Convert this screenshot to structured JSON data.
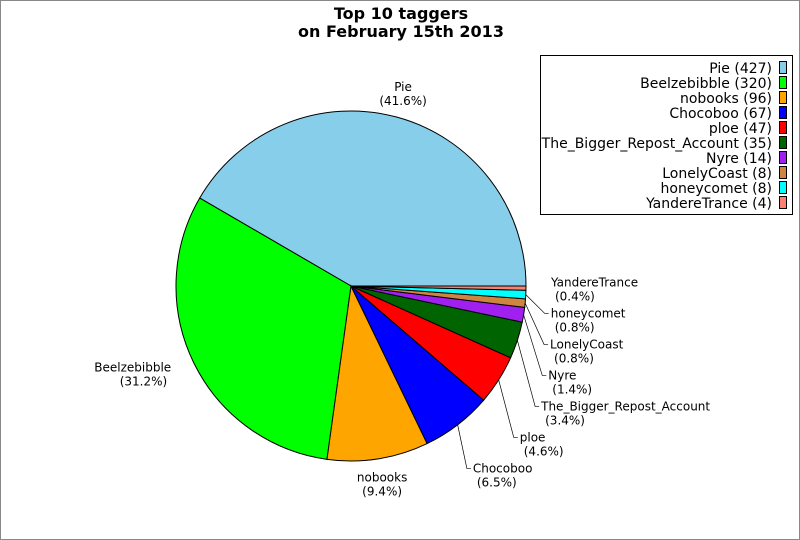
{
  "chart_data": {
    "type": "pie",
    "title": [
      "Top 10 taggers",
      "on February 15th 2013"
    ],
    "start_angle_deg": 0,
    "direction": "counterclockwise",
    "legend_placement": "top-right",
    "slices": [
      {
        "name": "Pie",
        "value": 427,
        "percent": "41.6%",
        "color": "#87CEEB"
      },
      {
        "name": "Beelzebibble",
        "value": 320,
        "percent": "31.2%",
        "color": "#00FF00"
      },
      {
        "name": "nobooks",
        "value": 96,
        "percent": "9.4%",
        "color": "#FFA500"
      },
      {
        "name": "Chocoboo",
        "value": 67,
        "percent": "6.5%",
        "color": "#0000FF"
      },
      {
        "name": "ploe",
        "value": 47,
        "percent": "4.6%",
        "color": "#FF0000"
      },
      {
        "name": "The_Bigger_Repost_Account",
        "value": 35,
        "percent": "3.4%",
        "color": "#006400"
      },
      {
        "name": "Nyre",
        "value": 14,
        "percent": "1.4%",
        "color": "#A020F0"
      },
      {
        "name": "LonelyCoast",
        "value": 8,
        "percent": "0.8%",
        "color": "#CD853F"
      },
      {
        "name": "honeycomet",
        "value": 8,
        "percent": "0.8%",
        "color": "#00FFFF"
      },
      {
        "name": "YandereTrance",
        "value": 4,
        "percent": "0.4%",
        "color": "#FA8072"
      }
    ]
  }
}
